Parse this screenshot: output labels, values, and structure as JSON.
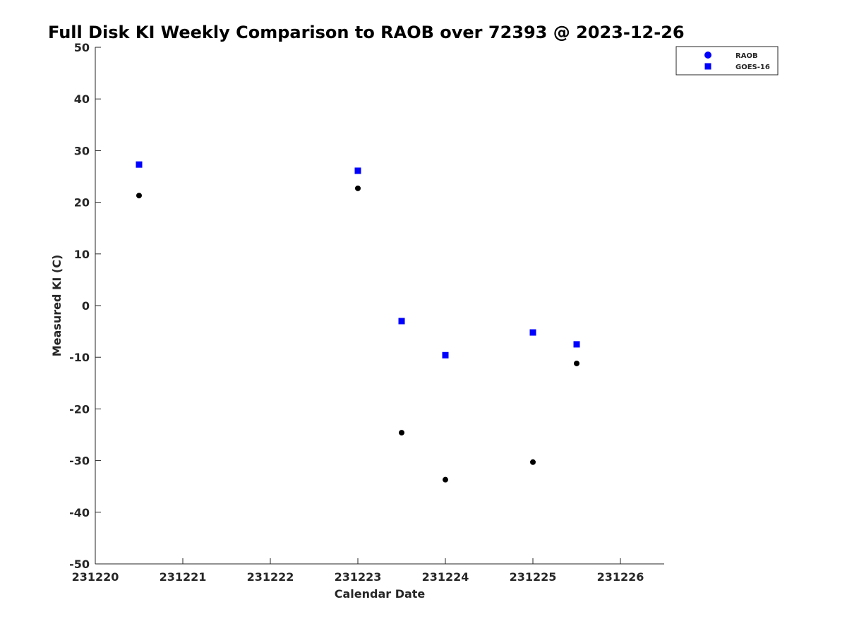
{
  "chart_data": {
    "type": "scatter",
    "title": "Full Disk KI Weekly Comparison to RAOB over 72393 @ 2023-12-26",
    "xlabel": "Calendar Date",
    "ylabel": "Measured KI (C)",
    "xlim": [
      231220,
      231226.5
    ],
    "ylim": [
      -50,
      50
    ],
    "xticks": [
      231220,
      231221,
      231222,
      231223,
      231224,
      231225,
      231226
    ],
    "yticks": [
      50,
      40,
      30,
      20,
      10,
      0,
      -10,
      -20,
      -30,
      -40,
      -50
    ],
    "grid": false,
    "legend_position": "top-right",
    "series": [
      {
        "name": "RAOB",
        "marker": "circle",
        "color": "#000000",
        "legend_color": "#0000ff",
        "x": [
          231220.5,
          231223,
          231223.5,
          231224,
          231225,
          231225.5
        ],
        "y": [
          21.3,
          22.7,
          -24.6,
          -33.7,
          -30.3,
          -11.2
        ]
      },
      {
        "name": "GOES-16",
        "marker": "square",
        "color": "#0000ff",
        "legend_color": "#0000ff",
        "x": [
          231220.5,
          231223,
          231223.5,
          231224,
          231225,
          231225.5
        ],
        "y": [
          27.3,
          26.1,
          -3.0,
          -9.6,
          -5.2,
          -7.5
        ]
      }
    ]
  }
}
